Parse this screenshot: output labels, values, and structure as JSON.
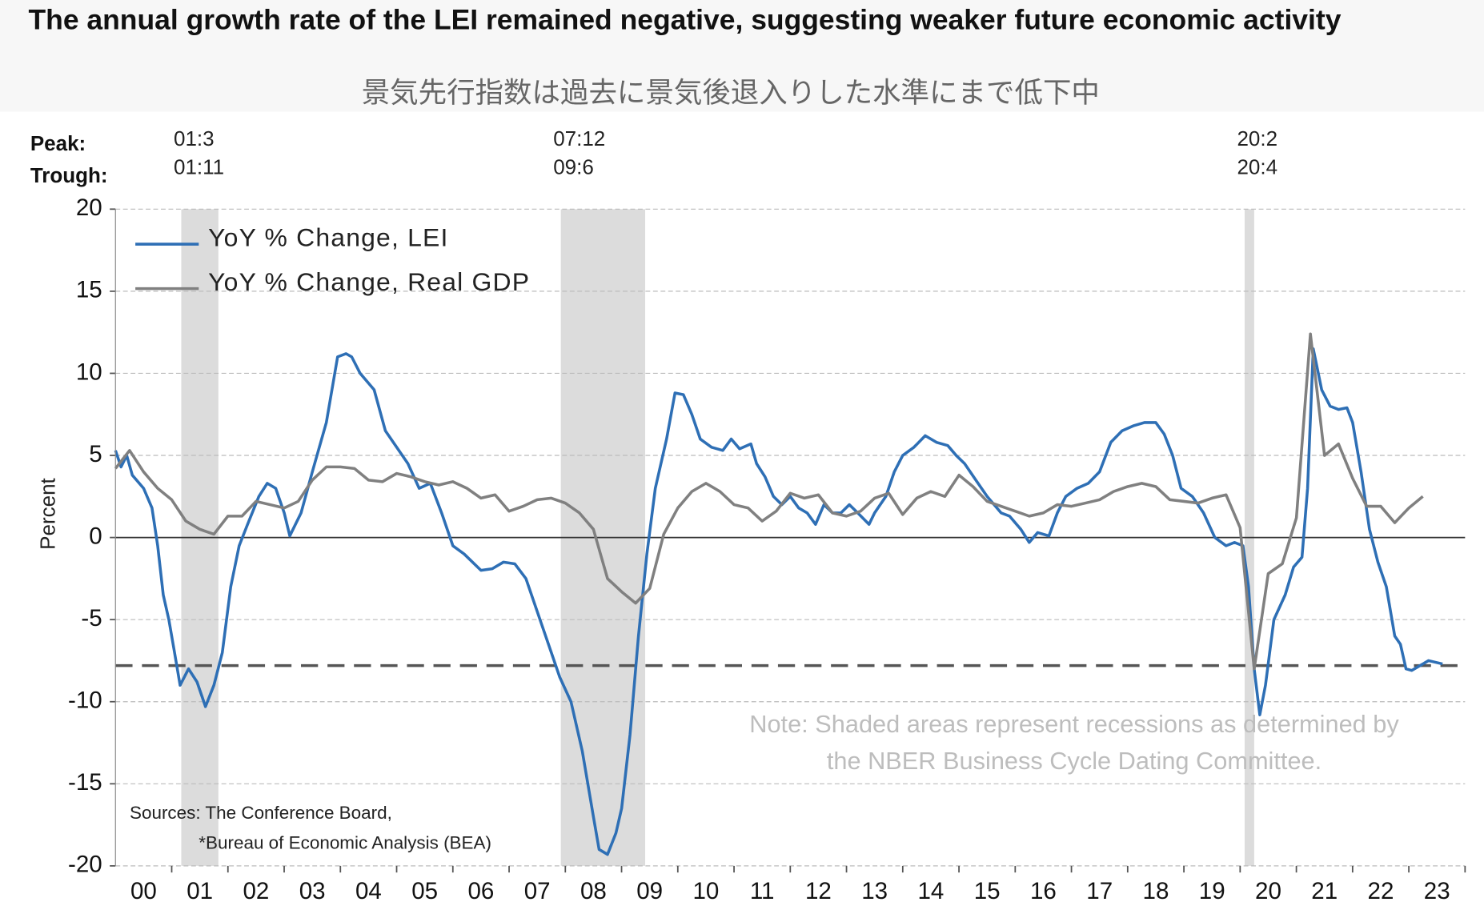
{
  "chart_data": {
    "type": "line",
    "title": "The annual growth rate of the LEI remained negative, suggesting weaker future economic activity",
    "subtitle": "景気先行指数は過去に景気後退入りした水準にまで低下中",
    "ylabel": "Percent",
    "peak_label": "Peak:",
    "trough_label": "Trough:",
    "recessions": [
      {
        "peak": "01:3",
        "trough": "01:11",
        "x": [
          2001.17,
          2001.83
        ]
      },
      {
        "peak": "07:12",
        "trough": "09:6",
        "x": [
          2007.92,
          2009.42
        ]
      },
      {
        "peak": "20:2",
        "trough": "20:4",
        "x": [
          2020.08,
          2020.25
        ]
      }
    ],
    "note": [
      "Note: Shaded areas represent recessions as determined by",
      "the NBER Business Cycle Dating Committee."
    ],
    "sources": [
      "Sources: The Conference Board,",
      "*Bureau of Economic Analysis (BEA)"
    ],
    "reference_line": -7.8,
    "xlim": [
      2000,
      2024
    ],
    "xticks": [
      {
        "value": 2000.5,
        "label": "00"
      },
      {
        "value": 2001.5,
        "label": "01"
      },
      {
        "value": 2002.5,
        "label": "02"
      },
      {
        "value": 2003.5,
        "label": "03"
      },
      {
        "value": 2004.5,
        "label": "04"
      },
      {
        "value": 2005.5,
        "label": "05"
      },
      {
        "value": 2006.5,
        "label": "06"
      },
      {
        "value": 2007.5,
        "label": "07"
      },
      {
        "value": 2008.5,
        "label": "08"
      },
      {
        "value": 2009.5,
        "label": "09"
      },
      {
        "value": 2010.5,
        "label": "10"
      },
      {
        "value": 2011.5,
        "label": "11"
      },
      {
        "value": 2012.5,
        "label": "12"
      },
      {
        "value": 2013.5,
        "label": "13"
      },
      {
        "value": 2014.5,
        "label": "14"
      },
      {
        "value": 2015.5,
        "label": "15"
      },
      {
        "value": 2016.5,
        "label": "16"
      },
      {
        "value": 2017.5,
        "label": "17"
      },
      {
        "value": 2018.5,
        "label": "18"
      },
      {
        "value": 2019.5,
        "label": "19"
      },
      {
        "value": 2020.5,
        "label": "20"
      },
      {
        "value": 2021.5,
        "label": "21"
      },
      {
        "value": 2022.5,
        "label": "22"
      },
      {
        "value": 2023.5,
        "label": "23"
      }
    ],
    "ylim": [
      -20,
      20
    ],
    "yticks": [
      -20,
      -15,
      -10,
      -5,
      0,
      5,
      10,
      15,
      20
    ],
    "grid": true,
    "legend": "top-left",
    "series": [
      {
        "name": "YoY % Change, LEI",
        "color": "#2e6fb5",
        "x": [
          2000.0,
          2000.1,
          2000.2,
          2000.3,
          2000.5,
          2000.65,
          2000.75,
          2000.85,
          2000.95,
          2001.05,
          2001.15,
          2001.3,
          2001.45,
          2001.6,
          2001.75,
          2001.9,
          2002.05,
          2002.2,
          2002.35,
          2002.55,
          2002.7,
          2002.85,
          2003.0,
          2003.1,
          2003.3,
          2003.5,
          2003.75,
          2003.95,
          2004.1,
          2004.2,
          2004.35,
          2004.6,
          2004.8,
          2005.0,
          2005.2,
          2005.4,
          2005.6,
          2005.8,
          2006.0,
          2006.2,
          2006.5,
          2006.7,
          2006.9,
          2007.1,
          2007.3,
          2007.5,
          2007.7,
          2007.9,
          2008.1,
          2008.3,
          2008.5,
          2008.6,
          2008.75,
          2008.9,
          2009.0,
          2009.15,
          2009.3,
          2009.45,
          2009.6,
          2009.8,
          2009.95,
          2010.1,
          2010.25,
          2010.4,
          2010.6,
          2010.8,
          2010.95,
          2011.1,
          2011.3,
          2011.4,
          2011.55,
          2011.7,
          2011.85,
          2012.0,
          2012.15,
          2012.3,
          2012.45,
          2012.6,
          2012.75,
          2012.9,
          2013.05,
          2013.2,
          2013.4,
          2013.5,
          2013.7,
          2013.85,
          2014.0,
          2014.2,
          2014.4,
          2014.6,
          2014.8,
          2014.95,
          2015.1,
          2015.3,
          2015.5,
          2015.75,
          2015.9,
          2016.1,
          2016.25,
          2016.4,
          2016.6,
          2016.75,
          2016.9,
          2017.1,
          2017.3,
          2017.5,
          2017.7,
          2017.9,
          2018.1,
          2018.3,
          2018.5,
          2018.65,
          2018.8,
          2018.95,
          2019.15,
          2019.35,
          2019.55,
          2019.75,
          2019.9,
          2020.05,
          2020.15,
          2020.25,
          2020.35,
          2020.45,
          2020.6,
          2020.8,
          2020.95,
          2021.1,
          2021.2,
          2021.3,
          2021.45,
          2021.6,
          2021.75,
          2021.9,
          2022.0,
          2022.15,
          2022.3,
          2022.45,
          2022.6,
          2022.75,
          2022.85,
          2022.95,
          2023.05,
          2023.2,
          2023.35,
          2023.6
        ],
        "values": [
          5.3,
          4.3,
          5.0,
          3.8,
          3.0,
          1.8,
          -0.5,
          -3.5,
          -5,
          -7,
          -9,
          -8,
          -8.8,
          -10.3,
          -9,
          -7,
          -3,
          -0.5,
          0.8,
          2.5,
          3.3,
          3,
          1.5,
          0.1,
          1.5,
          4,
          7,
          11,
          11.2,
          11,
          10,
          9,
          6.5,
          5.5,
          4.5,
          3,
          3.3,
          1.5,
          -0.5,
          -1.0,
          -2,
          -1.9,
          -1.5,
          -1.6,
          -2.5,
          -4.5,
          -6.5,
          -8.5,
          -10,
          -13,
          -17,
          -19,
          -19.3,
          -18,
          -16.5,
          -12,
          -6,
          -1,
          3,
          6,
          8.8,
          8.7,
          7.5,
          6,
          5.5,
          5.3,
          6,
          5.4,
          5.7,
          4.5,
          3.7,
          2.5,
          2,
          2.5,
          1.8,
          1.5,
          0.8,
          2,
          1.5,
          1.5,
          2,
          1.5,
          0.8,
          1.5,
          2.5,
          4,
          5,
          5.5,
          6.2,
          5.8,
          5.6,
          5.0,
          4.5,
          3.5,
          2.5,
          1.5,
          1.3,
          0.5,
          -0.3,
          0.3,
          0.1,
          1.5,
          2.5,
          3.0,
          3.3,
          4.0,
          5.8,
          6.5,
          6.8,
          7.0,
          7.0,
          6.3,
          5,
          3,
          2.5,
          1.5,
          0,
          -0.5,
          -0.3,
          -0.5,
          -3,
          -8,
          -10.8,
          -9,
          -5,
          -3.5,
          -1.8,
          -1.2,
          3,
          11.5,
          9,
          8,
          7.8,
          7.9,
          7,
          4,
          0.5,
          -1.5,
          -3,
          -6,
          -6.5,
          -8,
          -8.1,
          -7.8,
          -7.5,
          -7.7
        ]
      },
      {
        "name": "YoY % Change, Real GDP",
        "color": "#808080",
        "x": [
          2000.0,
          2000.25,
          2000.5,
          2000.75,
          2001.0,
          2001.25,
          2001.5,
          2001.75,
          2002.0,
          2002.25,
          2002.5,
          2002.75,
          2003.0,
          2003.25,
          2003.5,
          2003.75,
          2004.0,
          2004.25,
          2004.5,
          2004.75,
          2005.0,
          2005.25,
          2005.5,
          2005.75,
          2006.0,
          2006.25,
          2006.5,
          2006.75,
          2007.0,
          2007.25,
          2007.5,
          2007.75,
          2008.0,
          2008.25,
          2008.5,
          2008.75,
          2009.0,
          2009.25,
          2009.5,
          2009.75,
          2010.0,
          2010.25,
          2010.5,
          2010.75,
          2011.0,
          2011.25,
          2011.5,
          2011.75,
          2012.0,
          2012.25,
          2012.5,
          2012.75,
          2013.0,
          2013.25,
          2013.5,
          2013.75,
          2014.0,
          2014.25,
          2014.5,
          2014.75,
          2015.0,
          2015.25,
          2015.5,
          2015.75,
          2016.0,
          2016.25,
          2016.5,
          2016.75,
          2017.0,
          2017.25,
          2017.5,
          2017.75,
          2018.0,
          2018.25,
          2018.5,
          2018.75,
          2019.0,
          2019.25,
          2019.5,
          2019.75,
          2020.0,
          2020.25,
          2020.5,
          2020.75,
          2021.0,
          2021.25,
          2021.5,
          2021.75,
          2022.0,
          2022.25,
          2022.5,
          2022.75,
          2023.0,
          2023.25
        ],
        "values": [
          4.2,
          5.3,
          4.0,
          3.0,
          2.3,
          1.0,
          0.5,
          0.2,
          1.3,
          1.3,
          2.2,
          2.0,
          1.8,
          2.2,
          3.5,
          4.3,
          4.3,
          4.2,
          3.5,
          3.4,
          3.9,
          3.7,
          3.4,
          3.2,
          3.4,
          3.0,
          2.4,
          2.6,
          1.6,
          1.9,
          2.3,
          2.4,
          2.1,
          1.5,
          0.5,
          -2.5,
          -3.3,
          -4.0,
          -3.1,
          0.2,
          1.8,
          2.8,
          3.3,
          2.8,
          2.0,
          1.8,
          1.0,
          1.6,
          2.7,
          2.4,
          2.6,
          1.5,
          1.3,
          1.6,
          2.4,
          2.7,
          1.4,
          2.4,
          2.8,
          2.5,
          3.8,
          3.1,
          2.2,
          1.9,
          1.6,
          1.3,
          1.5,
          2.0,
          1.9,
          2.1,
          2.3,
          2.8,
          3.1,
          3.3,
          3.1,
          2.3,
          2.2,
          2.1,
          2.4,
          2.6,
          0.6,
          -8.0,
          -2.2,
          -1.6,
          1.2,
          12.4,
          5.0,
          5.7,
          3.6,
          1.9,
          1.9,
          0.9,
          1.8,
          2.5
        ]
      }
    ]
  }
}
